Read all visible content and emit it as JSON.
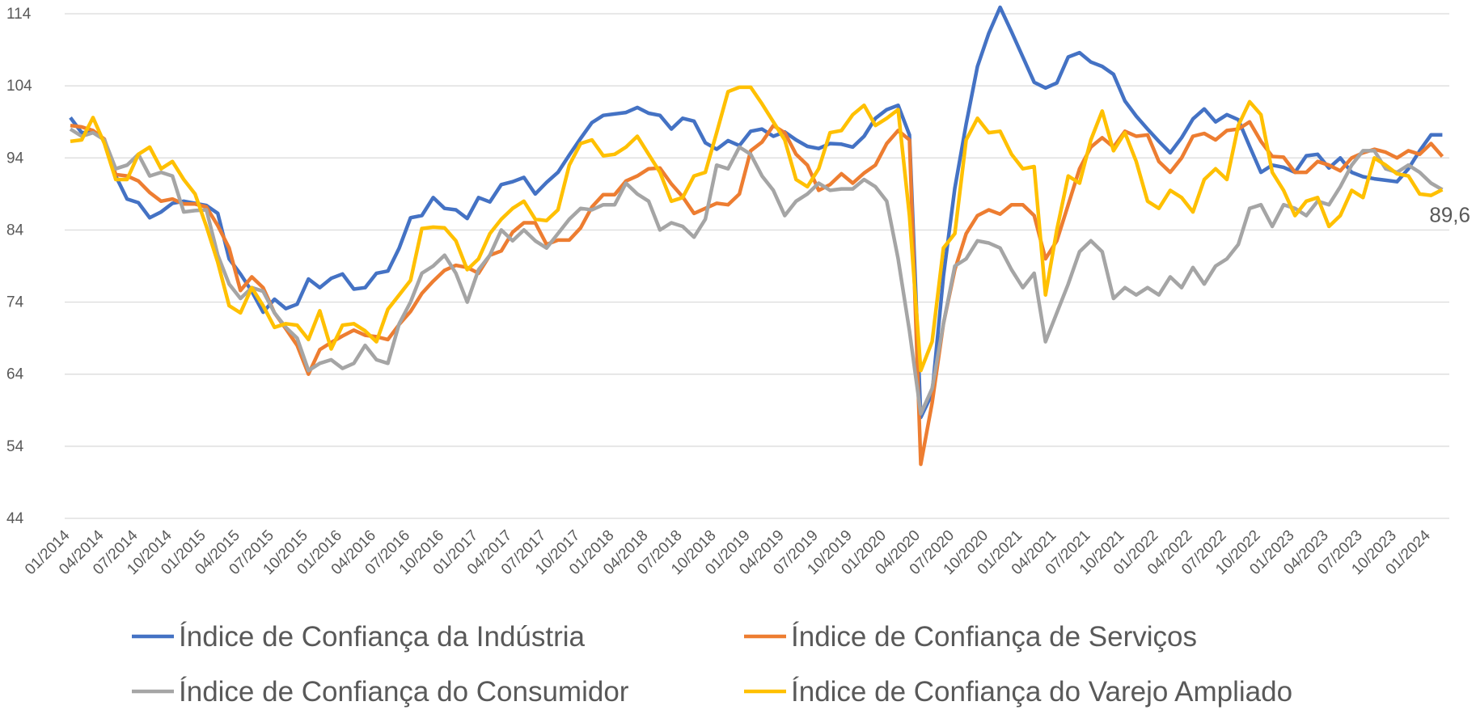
{
  "chart_data": {
    "type": "line",
    "categories": [
      "01/2014",
      null,
      null,
      "04/2014",
      null,
      null,
      "07/2014",
      null,
      null,
      "10/2014",
      null,
      null,
      "01/2015",
      null,
      null,
      "04/2015",
      null,
      null,
      "07/2015",
      null,
      null,
      "10/2015",
      null,
      null,
      "01/2016",
      null,
      null,
      "04/2016",
      null,
      null,
      "07/2016",
      null,
      null,
      "10/2016",
      null,
      null,
      "01/2017",
      null,
      null,
      "04/2017",
      null,
      null,
      "07/2017",
      null,
      null,
      "10/2017",
      null,
      null,
      "01/2018",
      null,
      null,
      "04/2018",
      null,
      null,
      "07/2018",
      null,
      null,
      "10/2018",
      null,
      null,
      "01/2019",
      null,
      null,
      "04/2019",
      null,
      null,
      "07/2019",
      null,
      null,
      "10/2019",
      null,
      null,
      "01/2020",
      null,
      null,
      "04/2020",
      null,
      null,
      "07/2020",
      null,
      null,
      "10/2020",
      null,
      null,
      "01/2021",
      null,
      null,
      "04/2021",
      null,
      null,
      "07/2021",
      null,
      null,
      "10/2021",
      null,
      null,
      "01/2022",
      null,
      null,
      "04/2022",
      null,
      null,
      "07/2022",
      null,
      null,
      "10/2022",
      null,
      null,
      "01/2023",
      null,
      null,
      "04/2023",
      null,
      null,
      "07/2023",
      null,
      null,
      "10/2023",
      null,
      null,
      "01/2024",
      null
    ],
    "series": [
      {
        "name": "Índice de Confiança da Indústria",
        "color": "#4472c4",
        "values": [
          99.6,
          97.5,
          97.6,
          96.5,
          91.5,
          88.3,
          87.8,
          85.7,
          86.5,
          87.7,
          88.0,
          87.7,
          87.4,
          86.3,
          80.0,
          77.9,
          75.5,
          72.6,
          74.4,
          73.1,
          73.7,
          77.2,
          76.0,
          77.3,
          77.9,
          75.8,
          76.0,
          78.0,
          78.3,
          81.5,
          85.7,
          86.0,
          88.5,
          87.0,
          86.8,
          85.6,
          88.5,
          87.9,
          90.3,
          90.7,
          91.3,
          89.0,
          90.6,
          92.0,
          94.4,
          96.7,
          98.9,
          99.9,
          100.1,
          100.3,
          101.0,
          100.2,
          99.9,
          98.0,
          99.5,
          99.1,
          96.1,
          95.2,
          96.4,
          95.7,
          97.7,
          98.0,
          97.0,
          97.6,
          96.5,
          95.6,
          95.3,
          96.0,
          95.9,
          95.5,
          97.0,
          99.5,
          100.7,
          101.3,
          97.2,
          58.0,
          61.3,
          77.6,
          89.8,
          98.7,
          106.7,
          111.3,
          114.9,
          111.5,
          108.0,
          104.5,
          103.7,
          104.4,
          108.0,
          108.6,
          107.3,
          106.7,
          105.6,
          101.9,
          99.8,
          98.0,
          96.3,
          94.7,
          96.8,
          99.4,
          100.8,
          99.0,
          100.0,
          99.3,
          95.6,
          92.0,
          93.0,
          92.7,
          92.0,
          94.3,
          94.5,
          92.6,
          94.0,
          92.0,
          91.4,
          91.1,
          90.9,
          90.7,
          92.5,
          95.0,
          97.2,
          97.2
        ]
      },
      {
        "name": "Índice de Confiança de Serviços",
        "color": "#ed7d31",
        "values": [
          98.5,
          98.3,
          97.8,
          96.6,
          91.7,
          91.5,
          90.8,
          89.2,
          88.0,
          88.3,
          87.6,
          87.6,
          87.2,
          84.6,
          81.5,
          75.6,
          77.5,
          76.0,
          72.5,
          70.3,
          68.0,
          64.0,
          67.4,
          68.4,
          69.3,
          70.1,
          69.4,
          69.2,
          68.8,
          70.9,
          72.7,
          75.2,
          76.9,
          78.4,
          79.1,
          78.8,
          78.0,
          80.5,
          81.1,
          83.7,
          85.0,
          85.0,
          82.0,
          82.6,
          82.6,
          84.3,
          87.2,
          88.9,
          88.9,
          90.8,
          91.5,
          92.5,
          92.6,
          90.4,
          88.6,
          86.3,
          87.0,
          87.7,
          87.5,
          89.0,
          95.0,
          96.2,
          98.5,
          97.5,
          94.5,
          93.0,
          89.5,
          90.3,
          91.8,
          90.5,
          91.9,
          93.0,
          96.0,
          97.8,
          96.5,
          51.5,
          60.0,
          71.0,
          78.5,
          83.5,
          86.0,
          86.8,
          86.2,
          87.5,
          87.5,
          86.0,
          80.0,
          82.5,
          87.5,
          92.5,
          95.5,
          96.8,
          95.5,
          97.7,
          97.0,
          97.2,
          93.5,
          92.0,
          94.0,
          97.0,
          97.4,
          96.5,
          97.8,
          98.0,
          99.0,
          96.3,
          94.2,
          94.1,
          92.0,
          92.0,
          93.5,
          93.0,
          92.2,
          94.0,
          94.7,
          95.2,
          94.8,
          94.0,
          95.0,
          94.5,
          96.0,
          94.2
        ]
      },
      {
        "name": "Índice de Confiança do Consumidor",
        "color": "#a5a5a5",
        "values": [
          98.0,
          97.0,
          97.5,
          96.5,
          92.5,
          93.0,
          94.5,
          91.5,
          92.0,
          91.5,
          86.5,
          86.7,
          86.8,
          80.5,
          76.5,
          74.5,
          76.0,
          75.5,
          72.5,
          70.5,
          69.0,
          64.5,
          65.5,
          66.0,
          64.8,
          65.5,
          68.0,
          66.0,
          65.5,
          71.0,
          74.0,
          78.0,
          79.0,
          80.5,
          78.0,
          74.0,
          78.5,
          80.5,
          84.0,
          82.5,
          84.0,
          82.5,
          81.5,
          83.5,
          85.5,
          87.0,
          86.8,
          87.5,
          87.5,
          90.5,
          89.0,
          88.0,
          84.0,
          85.0,
          84.5,
          83.0,
          85.5,
          93.0,
          92.5,
          95.5,
          94.5,
          91.5,
          89.5,
          86.0,
          88.0,
          89.0,
          90.5,
          89.5,
          89.7,
          89.7,
          91.0,
          90.0,
          88.0,
          80.0,
          70.0,
          58.5,
          62.0,
          71.0,
          79.0,
          80.0,
          82.5,
          82.2,
          81.5,
          78.5,
          76.0,
          78.0,
          68.5,
          72.5,
          76.5,
          81.0,
          82.5,
          81.0,
          74.5,
          76.0,
          75.0,
          76.0,
          75.0,
          77.5,
          76.0,
          78.8,
          76.5,
          79.0,
          80.0,
          82.0,
          87.0,
          87.5,
          84.5,
          87.5,
          87.0,
          86.0,
          88.0,
          87.5,
          90.0,
          93.0,
          95.0,
          95.0,
          92.5,
          92.0,
          93.0,
          92.0,
          90.5,
          89.6
        ]
      },
      {
        "name": "Índice de Confiança do Varejo Ampliado",
        "color": "#ffc000",
        "values": [
          96.3,
          96.5,
          99.6,
          96.0,
          91.0,
          91.0,
          94.5,
          95.5,
          92.5,
          93.5,
          91.0,
          89.0,
          84.5,
          79.5,
          73.5,
          72.5,
          76.0,
          73.5,
          70.5,
          71.0,
          70.8,
          68.8,
          72.8,
          67.5,
          70.8,
          71.0,
          70.0,
          68.5,
          73.0,
          75.0,
          77.0,
          84.2,
          84.4,
          84.3,
          82.5,
          78.5,
          80.0,
          83.5,
          85.5,
          87.0,
          88.0,
          85.5,
          85.3,
          86.8,
          93.0,
          96.0,
          96.5,
          94.3,
          94.5,
          95.5,
          97.0,
          94.5,
          92.0,
          88.0,
          88.5,
          91.5,
          92.0,
          97.5,
          103.2,
          103.8,
          103.8,
          101.5,
          99.0,
          96.5,
          91.0,
          90.0,
          92.5,
          97.5,
          97.8,
          100.0,
          101.3,
          98.5,
          99.5,
          100.7,
          86.0,
          64.5,
          68.5,
          81.5,
          83.5,
          96.5,
          99.5,
          97.5,
          97.7,
          94.5,
          92.5,
          92.8,
          75.0,
          84.0,
          91.5,
          90.5,
          96.5,
          100.5,
          95.0,
          97.5,
          93.5,
          88.0,
          87.0,
          89.5,
          88.5,
          86.5,
          91.0,
          92.5,
          91.0,
          98.5,
          101.8,
          100.0,
          92.0,
          89.5,
          86.0,
          88.0,
          88.5,
          84.5,
          86.0,
          89.5,
          88.5,
          94.0,
          93.0,
          91.8,
          91.5,
          89.0,
          88.8,
          89.6
        ]
      }
    ],
    "annotation": {
      "text": "89,6",
      "value": 89.6
    },
    "ylim": [
      44,
      114
    ],
    "yticks": [
      44,
      54,
      64,
      74,
      84,
      94,
      104,
      114
    ],
    "grid": true
  }
}
